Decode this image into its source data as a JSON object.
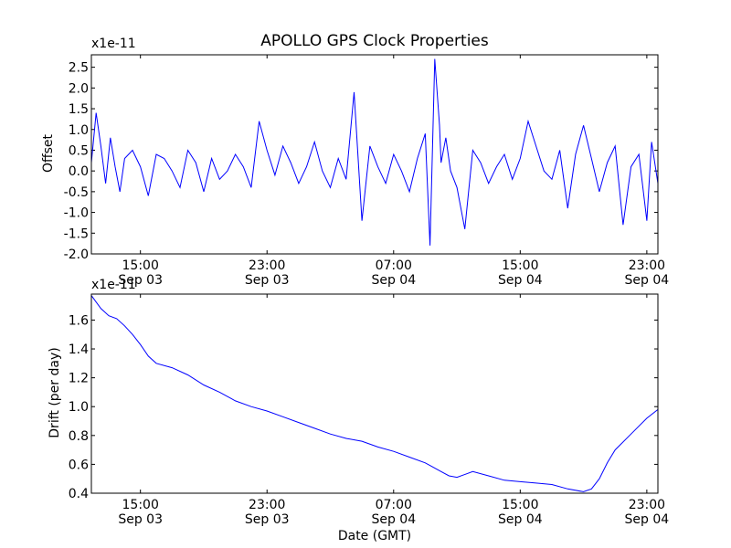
{
  "chart_data": [
    {
      "type": "line",
      "title": "APOLLO GPS Clock Properties",
      "ylabel": "Offset",
      "xlabel": "",
      "exponent_label": "x1e-11",
      "ylim": [
        -2.0,
        2.8
      ],
      "y_ticks": [
        -2.0,
        -1.5,
        -1.0,
        -0.5,
        0.0,
        0.5,
        1.0,
        1.5,
        2.0,
        2.5
      ],
      "y_tick_labels": [
        "-2.0",
        "-1.5",
        "-1.0",
        "-0.5",
        "0.0",
        "0.5",
        "1.0",
        "1.5",
        "2.0",
        "2.5"
      ],
      "xlim_hours": [
        11.9,
        47.7
      ],
      "x_ticks_hours": [
        15,
        23,
        31,
        39,
        47
      ],
      "x_tick_labels": [
        {
          "time": "15:00",
          "date": "Sep 03"
        },
        {
          "time": "23:00",
          "date": "Sep 03"
        },
        {
          "time": "07:00",
          "date": "Sep 04"
        },
        {
          "time": "15:00",
          "date": "Sep 04"
        },
        {
          "time": "23:00",
          "date": "Sep 04"
        }
      ],
      "series": [
        {
          "color": "#0000ff",
          "x_hours": [
            11.9,
            12.2,
            12.5,
            12.8,
            13.1,
            13.4,
            13.7,
            14.0,
            14.5,
            15.0,
            15.5,
            16.0,
            16.5,
            17.0,
            17.5,
            18.0,
            18.5,
            19.0,
            19.5,
            20.0,
            20.5,
            21.0,
            21.5,
            22.0,
            22.5,
            23.0,
            23.5,
            24.0,
            24.5,
            25.0,
            25.5,
            26.0,
            26.5,
            27.0,
            27.5,
            28.0,
            28.5,
            29.0,
            29.5,
            30.0,
            30.5,
            31.0,
            31.5,
            32.0,
            32.5,
            33.0,
            33.3,
            33.6,
            33.9,
            34.0,
            34.3,
            34.6,
            35.0,
            35.5,
            36.0,
            36.5,
            37.0,
            37.5,
            38.0,
            38.5,
            39.0,
            39.5,
            40.0,
            40.5,
            41.0,
            41.5,
            42.0,
            42.5,
            43.0,
            43.5,
            44.0,
            44.5,
            45.0,
            45.5,
            46.0,
            46.5,
            47.0,
            47.3,
            47.7
          ],
          "y": [
            0.2,
            1.4,
            0.6,
            -0.3,
            0.8,
            0.1,
            -0.5,
            0.3,
            0.5,
            0.1,
            -0.6,
            0.4,
            0.3,
            0.0,
            -0.4,
            0.5,
            0.2,
            -0.5,
            0.3,
            -0.2,
            0.0,
            0.4,
            0.1,
            -0.4,
            1.2,
            0.5,
            -0.1,
            0.6,
            0.2,
            -0.3,
            0.1,
            0.7,
            0.0,
            -0.4,
            0.3,
            -0.2,
            1.9,
            -1.2,
            0.6,
            0.1,
            -0.3,
            0.4,
            0.0,
            -0.5,
            0.3,
            0.9,
            -1.8,
            2.7,
            1.1,
            0.2,
            0.8,
            0.0,
            -0.4,
            -1.4,
            0.5,
            0.2,
            -0.3,
            0.1,
            0.4,
            -0.2,
            0.3,
            1.2,
            0.6,
            0.0,
            -0.2,
            0.5,
            -0.9,
            0.4,
            1.1,
            0.3,
            -0.5,
            0.2,
            0.6,
            -1.3,
            0.1,
            0.4,
            -1.2,
            0.7,
            -0.3
          ]
        }
      ]
    },
    {
      "type": "line",
      "title": "",
      "ylabel": "Drift (per day)",
      "xlabel": "Date (GMT)",
      "exponent_label": "x1e-11",
      "ylim": [
        0.4,
        1.78
      ],
      "y_ticks": [
        0.4,
        0.6,
        0.8,
        1.0,
        1.2,
        1.4,
        1.6
      ],
      "y_tick_labels": [
        "0.4",
        "0.6",
        "0.8",
        "1.0",
        "1.2",
        "1.4",
        "1.6"
      ],
      "xlim_hours": [
        11.9,
        47.7
      ],
      "x_ticks_hours": [
        15,
        23,
        31,
        39,
        47
      ],
      "x_tick_labels": [
        {
          "time": "15:00",
          "date": "Sep 03"
        },
        {
          "time": "23:00",
          "date": "Sep 03"
        },
        {
          "time": "07:00",
          "date": "Sep 04"
        },
        {
          "time": "15:00",
          "date": "Sep 04"
        },
        {
          "time": "23:00",
          "date": "Sep 04"
        }
      ],
      "series": [
        {
          "color": "#0000ff",
          "x_hours": [
            11.9,
            12.5,
            13.0,
            13.5,
            14.0,
            14.5,
            15.0,
            15.5,
            16.0,
            17.0,
            18.0,
            19.0,
            20.0,
            21.0,
            22.0,
            23.0,
            24.0,
            25.0,
            26.0,
            27.0,
            28.0,
            29.0,
            30.0,
            31.0,
            32.0,
            33.0,
            33.5,
            34.0,
            34.5,
            35.0,
            36.0,
            37.0,
            38.0,
            39.0,
            40.0,
            41.0,
            42.0,
            43.0,
            43.5,
            44.0,
            44.5,
            45.0,
            46.0,
            47.0,
            47.7
          ],
          "y": [
            1.77,
            1.68,
            1.63,
            1.61,
            1.56,
            1.5,
            1.43,
            1.35,
            1.3,
            1.27,
            1.22,
            1.15,
            1.1,
            1.04,
            1.0,
            0.97,
            0.93,
            0.89,
            0.85,
            0.81,
            0.78,
            0.76,
            0.72,
            0.69,
            0.65,
            0.61,
            0.58,
            0.55,
            0.52,
            0.51,
            0.55,
            0.52,
            0.49,
            0.48,
            0.47,
            0.46,
            0.43,
            0.41,
            0.43,
            0.5,
            0.61,
            0.7,
            0.81,
            0.92,
            0.98
          ]
        }
      ]
    }
  ]
}
